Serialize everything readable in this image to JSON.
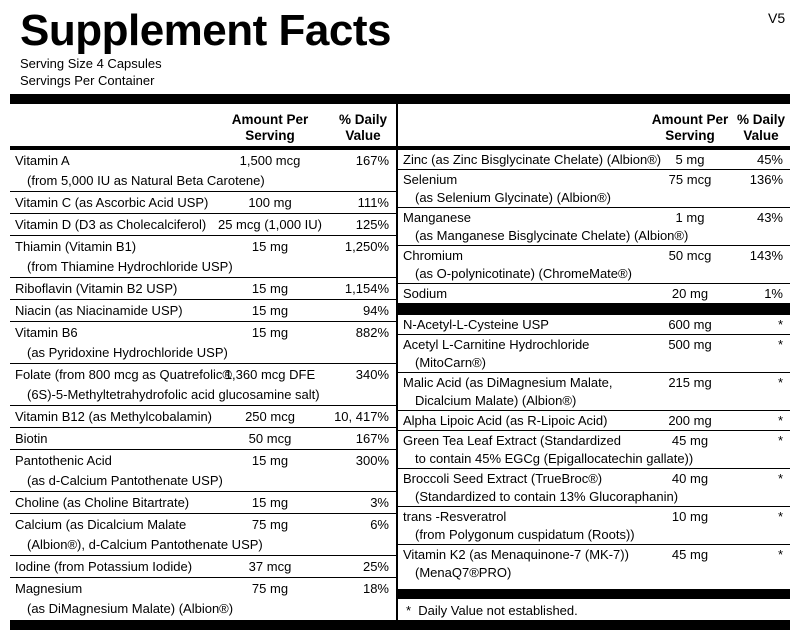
{
  "title": "Supplement Facts",
  "version": "V5",
  "serving_size": "Serving Size  4 Capsules",
  "servings_per_container": "Servings Per Container",
  "left": {
    "amount_header": "Amount Per Serving",
    "dv_header": "% Daily Value",
    "rows": [
      {
        "name": "Vitamin A",
        "sub": "(from 5,000 IU as Natural Beta Carotene)",
        "amount": "1,500 mcg",
        "dv": "167%"
      },
      {
        "name": "Vitamin C (as Ascorbic Acid USP)",
        "amount": "100 mg",
        "dv": "111%"
      },
      {
        "name": "Vitamin D (D3 as Cholecalciferol)",
        "amount": "25 mcg (1,000 IU)",
        "dv": "125%"
      },
      {
        "name": "Thiamin (Vitamin B1)",
        "sub": "(from Thiamine Hydrochloride USP)",
        "amount": "15 mg",
        "dv": "1,250%"
      },
      {
        "name": "Riboflavin (Vitamin B2 USP)",
        "amount": "15 mg",
        "dv": "1,154%"
      },
      {
        "name": "Niacin (as Niacinamide USP)",
        "amount": "15 mg",
        "dv": "94%"
      },
      {
        "name": "Vitamin B6",
        "sub": "(as Pyridoxine Hydrochloride USP)",
        "amount": "15 mg",
        "dv": "882%"
      },
      {
        "name": "Folate (from 800 mcg as Quatrefolic®",
        "sub": "(6S)-5-Methyltetrahydrofolic acid glucosamine salt)",
        "amount": "1,360 mcg DFE",
        "dv": "340%"
      },
      {
        "name": "Vitamin B12 (as Methylcobalamin)",
        "amount": "250 mcg",
        "dv": "10, 417%"
      },
      {
        "name": "Biotin",
        "amount": "50 mcg",
        "dv": "167%"
      },
      {
        "name": "Pantothenic Acid",
        "sub": "(as d-Calcium Pantothenate USP)",
        "amount": "15 mg",
        "dv": "300%"
      },
      {
        "name": "Choline (as Choline Bitartrate)",
        "amount": "15 mg",
        "dv": "3%"
      },
      {
        "name": "Calcium (as Dicalcium Malate",
        "sub": "(Albion®), d-Calcium Pantothenate USP)",
        "amount": "75 mg",
        "dv": "6%"
      },
      {
        "name": "Iodine (from Potassium Iodide)",
        "amount": "37 mcg",
        "dv": "25%"
      },
      {
        "name": "Magnesium",
        "sub": "(as DiMagnesium Malate) (Albion®)",
        "amount": "75 mg",
        "dv": "18%"
      }
    ]
  },
  "right": {
    "amount_header": "Amount Per Serving",
    "dv_header": "% Daily Value",
    "rows": [
      {
        "name": "Zinc (as Zinc Bisglycinate Chelate) (Albion®)",
        "amount": "5 mg",
        "dv": "45%"
      },
      {
        "name": "Selenium",
        "sub": "(as Selenium Glycinate) (Albion®)",
        "amount": "75 mcg",
        "dv": "136%"
      },
      {
        "name": "Manganese",
        "sub": "(as Manganese Bisglycinate Chelate) (Albion®)",
        "amount": "1 mg",
        "dv": "43%"
      },
      {
        "name": "Chromium",
        "sub": "(as O-polynicotinate) (ChromeMate®)",
        "amount": "50 mcg",
        "dv": "143%"
      },
      {
        "name": "Sodium",
        "amount": "20 mg",
        "dv": "1%"
      }
    ],
    "other_rows": [
      {
        "name": "N-Acetyl-L-Cysteine USP",
        "amount": "600 mg",
        "dv": "*"
      },
      {
        "name": "Acetyl L-Carnitine Hydrochloride",
        "sub": "(MitoCarn®)",
        "amount": "500 mg",
        "dv": "*"
      },
      {
        "name": "Malic Acid (as DiMagnesium Malate,",
        "sub": "Dicalcium Malate) (Albion®)",
        "amount": "215 mg",
        "dv": "*"
      },
      {
        "name": "Alpha Lipoic Acid (as R-Lipoic Acid)",
        "amount": "200 mg",
        "dv": "*"
      },
      {
        "name": "Green Tea Leaf Extract (Standardized",
        "sub": "to contain 45% EGCg (Epigallocatechin gallate))",
        "amount": "45 mg",
        "dv": "*"
      },
      {
        "name": "Broccoli Seed Extract (TrueBroc®)",
        "sub": "(Standardized to contain 13% Glucoraphanin)",
        "amount": "40 mg",
        "dv": "*"
      },
      {
        "name": "trans -Resveratrol",
        "sub": "(from Polygonum cuspidatum (Roots))",
        "amount": "10 mg",
        "dv": "*"
      },
      {
        "name": "Vitamin K2 (as Menaquinone-7 (MK-7))",
        "sub": "(MenaQ7®PRO)",
        "amount": "45 mg",
        "dv": "*"
      }
    ],
    "footnote": "*  Daily Value not established."
  }
}
